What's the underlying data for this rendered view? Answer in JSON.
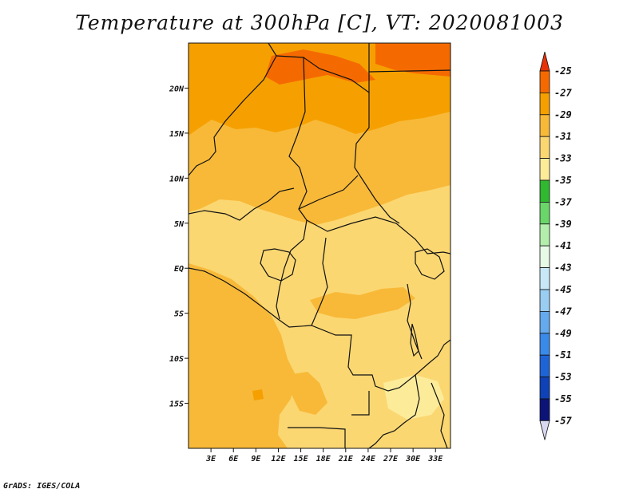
{
  "title": "Temperature at 300hPa [C], VT: 2020081003",
  "credit": "GrADS: IGES/COLA",
  "map": {
    "lon_range": [
      0,
      35
    ],
    "lat_range": [
      -20,
      25
    ],
    "lat_ticks": [
      {
        "value": 20,
        "label": "20N"
      },
      {
        "value": 15,
        "label": "15N"
      },
      {
        "value": 10,
        "label": "10N"
      },
      {
        "value": 5,
        "label": "5N"
      },
      {
        "value": 0,
        "label": "EQ"
      },
      {
        "value": -5,
        "label": "5S"
      },
      {
        "value": -10,
        "label": "10S"
      },
      {
        "value": -15,
        "label": "15S"
      }
    ],
    "lon_ticks": [
      {
        "value": 3,
        "label": "3E"
      },
      {
        "value": 6,
        "label": "6E"
      },
      {
        "value": 9,
        "label": "9E"
      },
      {
        "value": 12,
        "label": "12E"
      },
      {
        "value": 15,
        "label": "15E"
      },
      {
        "value": 18,
        "label": "18E"
      },
      {
        "value": 21,
        "label": "21E"
      },
      {
        "value": 24,
        "label": "24E"
      },
      {
        "value": 27,
        "label": "27E"
      },
      {
        "value": 30,
        "label": "30E"
      },
      {
        "value": 33,
        "label": "33E"
      }
    ]
  },
  "colorbar": {
    "labels": [
      "-25",
      "-27",
      "-29",
      "-31",
      "-33",
      "-35",
      "-37",
      "-39",
      "-41",
      "-43",
      "-45",
      "-47",
      "-49",
      "-51",
      "-53",
      "-55",
      "-57"
    ],
    "colors": [
      "#e8330a",
      "#f56a00",
      "#f5a000",
      "#f8b938",
      "#fbd772",
      "#fcec9a",
      "#30b830",
      "#6ad66a",
      "#b4eeac",
      "#e6fae6",
      "#c8e8f8",
      "#9acdf2",
      "#64aaec",
      "#3a8aea",
      "#1e64d6",
      "#0e42b6",
      "#0c1478",
      "#d8d8f0"
    ]
  }
}
